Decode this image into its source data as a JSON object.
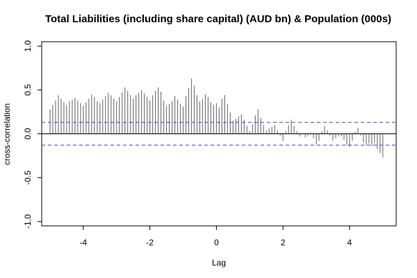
{
  "chart_data": {
    "type": "bar",
    "title": "Total Liabilities (including share capital) (AUD bn)  & Population (000s)",
    "xlabel": "Lag",
    "ylabel": "cross-correlation",
    "xlim": [
      -5.25,
      5.4
    ],
    "ylim": [
      -1.05,
      1.05
    ],
    "x_ticks": [
      -4,
      -2,
      0,
      2,
      4
    ],
    "x_tick_labels": [
      "-4",
      "-2",
      "0",
      "2",
      "4"
    ],
    "y_ticks": [
      -1.0,
      -0.5,
      0.0,
      0.5,
      1.0
    ],
    "y_tick_labels": [
      "-1.0",
      "-0.5",
      "0.0",
      "0.5",
      "1.0"
    ],
    "confidence_bound": 0.13,
    "x": [
      -5.0,
      -4.917,
      -4.833,
      -4.75,
      -4.667,
      -4.583,
      -4.5,
      -4.417,
      -4.333,
      -4.25,
      -4.167,
      -4.083,
      -4.0,
      -3.917,
      -3.833,
      -3.75,
      -3.667,
      -3.583,
      -3.5,
      -3.417,
      -3.333,
      -3.25,
      -3.167,
      -3.083,
      -3.0,
      -2.917,
      -2.833,
      -2.75,
      -2.667,
      -2.583,
      -2.5,
      -2.417,
      -2.333,
      -2.25,
      -2.167,
      -2.083,
      -2.0,
      -1.917,
      -1.833,
      -1.75,
      -1.667,
      -1.583,
      -1.5,
      -1.417,
      -1.333,
      -1.25,
      -1.167,
      -1.083,
      -1.0,
      -0.917,
      -0.833,
      -0.75,
      -0.667,
      -0.583,
      -0.5,
      -0.417,
      -0.333,
      -0.25,
      -0.167,
      -0.083,
      0.0,
      0.083,
      0.167,
      0.25,
      0.333,
      0.417,
      0.5,
      0.583,
      0.667,
      0.75,
      0.833,
      0.917,
      1.0,
      1.083,
      1.167,
      1.25,
      1.333,
      1.417,
      1.5,
      1.583,
      1.667,
      1.75,
      1.833,
      1.917,
      2.0,
      2.083,
      2.167,
      2.25,
      2.333,
      2.417,
      2.5,
      2.583,
      2.667,
      2.75,
      2.833,
      2.917,
      3.0,
      3.083,
      3.167,
      3.25,
      3.333,
      3.417,
      3.5,
      3.583,
      3.667,
      3.75,
      3.833,
      3.917,
      4.0,
      4.083,
      4.167,
      4.25,
      4.333,
      4.417,
      4.5,
      4.583,
      4.667,
      4.75,
      4.833,
      4.917,
      5.0
    ],
    "values": [
      0.28,
      0.33,
      0.38,
      0.44,
      0.4,
      0.36,
      0.33,
      0.37,
      0.39,
      0.41,
      0.38,
      0.35,
      0.32,
      0.36,
      0.4,
      0.45,
      0.42,
      0.37,
      0.35,
      0.39,
      0.43,
      0.47,
      0.44,
      0.4,
      0.37,
      0.42,
      0.47,
      0.53,
      0.49,
      0.44,
      0.4,
      0.44,
      0.47,
      0.5,
      0.46,
      0.42,
      0.38,
      0.44,
      0.49,
      0.53,
      0.48,
      0.38,
      0.32,
      0.34,
      0.37,
      0.43,
      0.39,
      0.34,
      0.31,
      0.43,
      0.52,
      0.63,
      0.55,
      0.44,
      0.37,
      0.4,
      0.45,
      0.42,
      0.36,
      0.33,
      0.35,
      0.3,
      0.4,
      0.44,
      0.34,
      0.24,
      0.15,
      0.17,
      0.2,
      0.22,
      0.16,
      0.09,
      0.03,
      0.11,
      0.21,
      0.28,
      0.18,
      0.1,
      0.04,
      0.06,
      0.08,
      0.1,
      0.04,
      -0.02,
      -0.08,
      0.03,
      0.1,
      0.16,
      0.09,
      0.03,
      -0.03,
      0.01,
      -0.04,
      -0.02,
      0.01,
      -0.05,
      -0.12,
      -0.08,
      0.03,
      0.09,
      0.04,
      -0.02,
      -0.08,
      -0.05,
      -0.03,
      -0.03,
      -0.07,
      -0.13,
      -0.15,
      -0.08,
      0.02,
      0.07,
      -0.02,
      -0.1,
      -0.13,
      -0.11,
      -0.14,
      -0.1,
      -0.17,
      -0.22,
      -0.27
    ]
  }
}
